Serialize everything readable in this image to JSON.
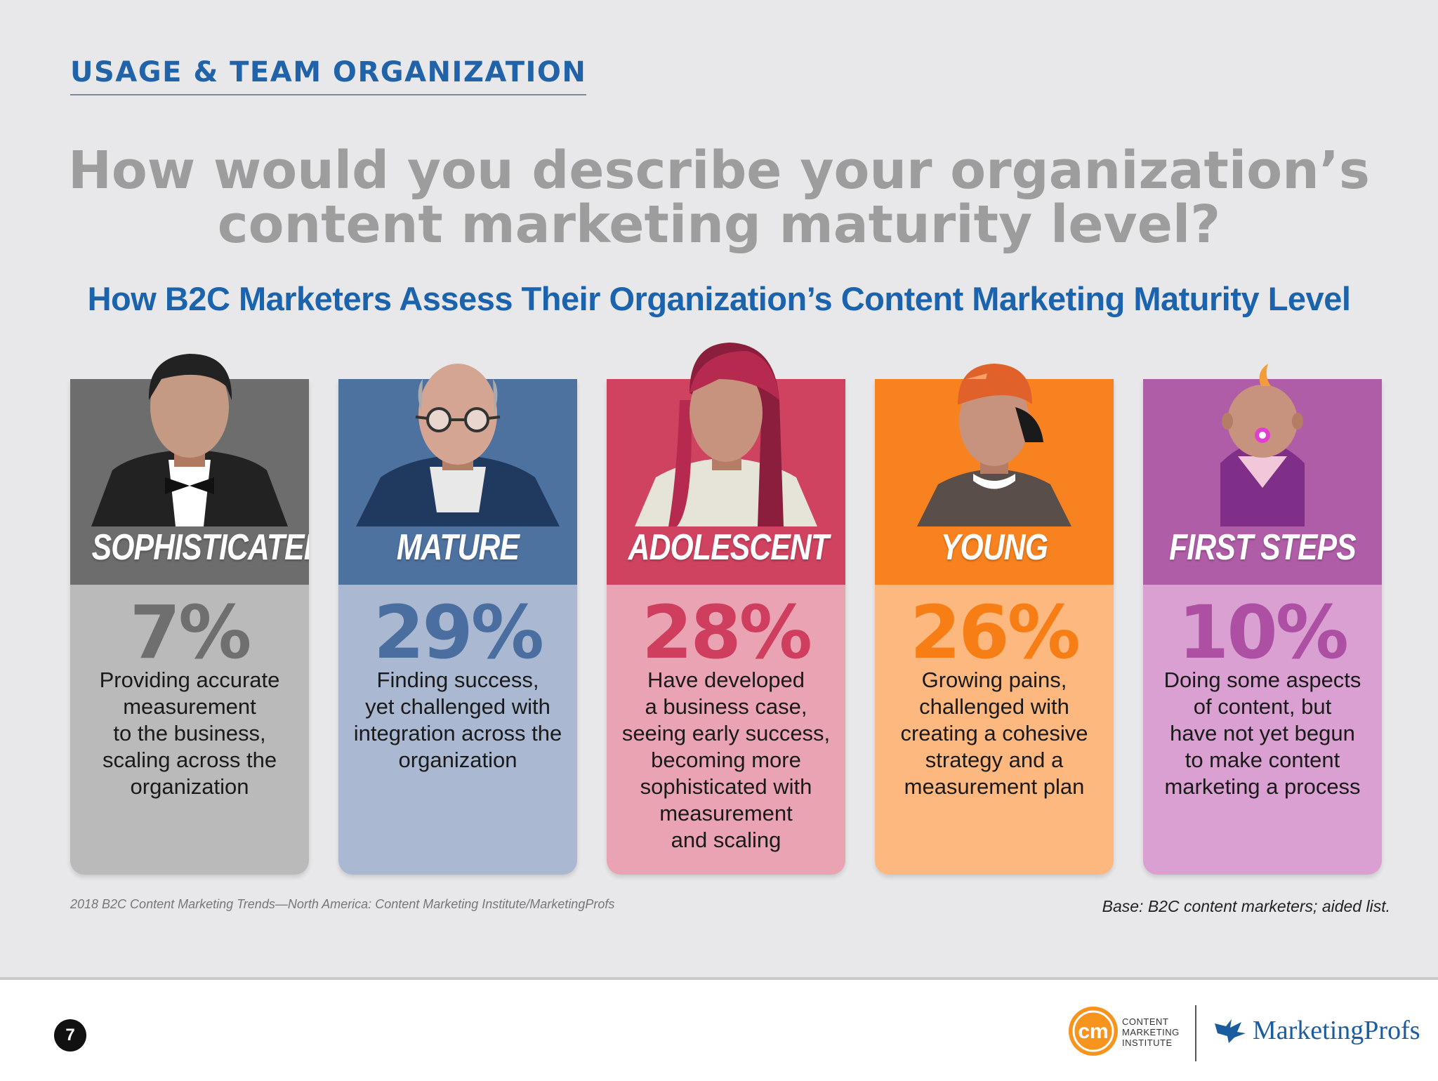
{
  "header": {
    "section_title": "USAGE & TEAM ORGANIZATION",
    "question_line1": "How would you describe your organization’s",
    "question_line2": "content marketing maturity level?"
  },
  "chart_data": {
    "type": "bar",
    "title": "How B2C Marketers Assess Their Organization’s Content Marketing Maturity Level",
    "categories": [
      "SOPHISTICATED",
      "MATURE",
      "ADOLESCENT",
      "YOUNG",
      "FIRST STEPS"
    ],
    "values": [
      7,
      29,
      28,
      26,
      10
    ],
    "value_labels": [
      "7%",
      "29%",
      "28%",
      "26%",
      "10%"
    ],
    "descriptions": [
      [
        "Providing accurate",
        "measurement",
        "to the business,",
        "scaling across the",
        "organization"
      ],
      [
        "Finding success,",
        "yet challenged with",
        "integration across the",
        "organization"
      ],
      [
        "Have developed",
        "a business case,",
        "seeing early success,",
        "becoming more",
        "sophisticated with",
        "measurement",
        "and scaling"
      ],
      [
        "Growing pains,",
        "challenged with",
        "creating a cohesive",
        "strategy and a",
        "measurement plan"
      ],
      [
        "Doing some aspects",
        "of content, but",
        "have not yet begun",
        "to make content",
        "marketing a process"
      ]
    ],
    "colors": {
      "header": [
        "#6d6d6d",
        "#4e72a0",
        "#cf4360",
        "#f8821f",
        "#b05da7"
      ],
      "body": [
        "#bababa",
        "#aab9d1",
        "#e9a3b3",
        "#fdb87f",
        "#d9a0d1"
      ],
      "percent": [
        "#6f6f6f",
        "#4a6e9f",
        "#cf3d5f",
        "#f77d15",
        "#ad4fa3"
      ]
    },
    "personas": [
      "man-in-tuxedo-icon",
      "older-man-with-glasses-icon",
      "woman-with-red-hair-icon",
      "teen-in-backwards-cap-icon",
      "baby-with-pacifier-icon"
    ]
  },
  "footer": {
    "source": "2018 B2C Content Marketing Trends—North America: Content Marketing Institute/MarketingProfs",
    "base": "Base: B2C content marketers; aided list.",
    "page_number": "7",
    "cmi_mark": "cm",
    "cmi_line1": "CONTENT",
    "cmi_line2": "MARKETING",
    "cmi_line3": "INSTITUTE",
    "mp_name": "MarketingProfs"
  }
}
